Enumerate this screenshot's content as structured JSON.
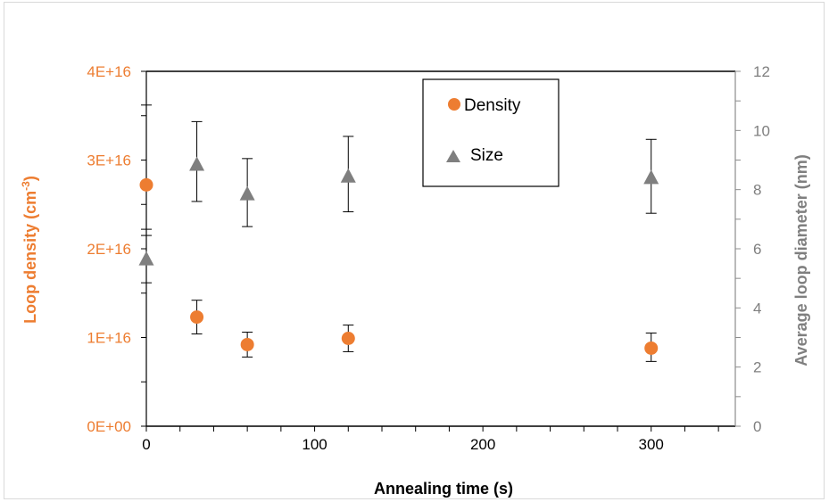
{
  "chart_data": {
    "type": "scatter",
    "xlabel": "Annealing time (s)",
    "ylabel_left": "Loop density (cm",
    "ylabel_left_sup": "-3",
    "ylabel_left_close": ")",
    "ylabel_right": "Average loop diameter (nm)",
    "xlim": [
      0,
      350
    ],
    "ylim_left": [
      0,
      4e+16
    ],
    "ylim_right": [
      0,
      12
    ],
    "x_ticks": [
      0,
      100,
      200,
      300
    ],
    "y_left_ticks": [
      "0E+00",
      "1E+16",
      "2E+16",
      "3E+16",
      "4E+16"
    ],
    "y_right_ticks": [
      0,
      2,
      4,
      6,
      8,
      10,
      12
    ],
    "legend": [
      "Density",
      "Size"
    ],
    "legend_position": "top-center",
    "series": [
      {
        "name": "Density",
        "axis": "left",
        "color": "#ED7D31",
        "marker": "circle",
        "x": [
          0,
          30,
          60,
          120,
          300
        ],
        "y": [
          2.72e+16,
          1.23e+16,
          9200000000000000.0,
          9900000000000000.0,
          8800000000000000.0
        ],
        "err_low": [
          5000000000000000.0,
          1900000000000000.0,
          1400000000000000.0,
          1500000000000000.0,
          1500000000000000.0
        ],
        "err_high": [
          9000000000000000.0,
          1900000000000000.0,
          1400000000000000.0,
          1500000000000000.0,
          1700000000000000.0
        ]
      },
      {
        "name": "Size",
        "axis": "right",
        "color": "#7F7F7F",
        "marker": "triangle",
        "x": [
          0,
          30,
          60,
          120,
          300
        ],
        "y": [
          5.65,
          8.85,
          7.85,
          8.45,
          8.4
        ],
        "err_low": [
          0.8,
          1.25,
          1.1,
          1.2,
          1.2
        ],
        "err_high": [
          0.8,
          1.45,
          1.2,
          1.35,
          1.3
        ]
      }
    ]
  }
}
